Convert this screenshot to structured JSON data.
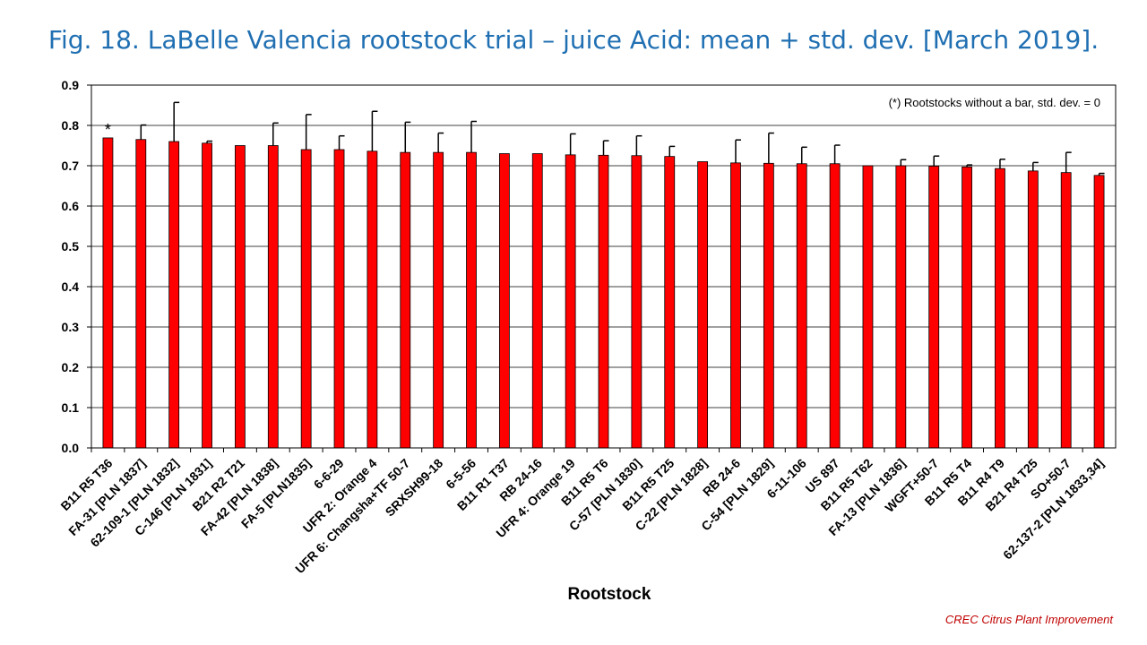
{
  "title": "Fig. 18. LaBelle Valencia rootstock trial – juice Acid: mean + std. dev. [March 2019].",
  "footer_credit": "CREC Citrus Plant Improvement",
  "colors": {
    "title": "#1F6FB2",
    "bar": "#FF0000",
    "credit": "#C00000"
  },
  "chart_data": {
    "type": "bar",
    "xlabel": "Rootstock",
    "ylabel": "",
    "ylim": [
      0,
      0.9
    ],
    "yticks": [
      "0.0",
      "0.1",
      "0.2",
      "0.3",
      "0.4",
      "0.5",
      "0.6",
      "0.7",
      "0.8",
      "0.9"
    ],
    "grid": true,
    "note": "(*) Rootstocks without  a bar, std. dev. = 0",
    "marker": "*",
    "categories": [
      "B11 R5 T36",
      "FA-31 [PLN 1837]",
      "62-109-1 [PLN 1832]",
      "C-146 [PLN 1831]",
      "B21 R2 T21",
      "FA-42 [PLN 1838]",
      "FA-5 [PLN1835]",
      "6-6-29",
      "UFR 2: Orange 4",
      "UFR 6: Changsha+TF 50-7",
      "SRXSH99-18",
      "6-5-56",
      "B11 R1 T37",
      "RB 24-16",
      "UFR 4: Orange 19",
      "B11 R5 T6",
      "C-57 [PLN 1830]",
      "B11 R5 T25",
      "C-22 [PLN 1828]",
      "RB 24-6",
      "C-54 [PLN 1829]",
      "6-11-106",
      "US 897",
      "B11 R5 T62",
      "FA-13 [PLN 1836]",
      "WGFT+50-7",
      "B11 R5 T4",
      "B11 R4 T9",
      "B21 R4 T25",
      "SO+50-7",
      "62-137-2 [PLN 1833,34]"
    ],
    "values": [
      0.769,
      0.765,
      0.76,
      0.756,
      0.75,
      0.75,
      0.74,
      0.74,
      0.736,
      0.733,
      0.733,
      0.733,
      0.73,
      0.73,
      0.727,
      0.726,
      0.725,
      0.723,
      0.71,
      0.707,
      0.706,
      0.705,
      0.705,
      0.7,
      0.7,
      0.699,
      0.697,
      0.693,
      0.687,
      0.683,
      0.676
    ],
    "errors": [
      0.0,
      0.036,
      0.097,
      0.005,
      0.0,
      0.056,
      0.087,
      0.034,
      0.099,
      0.075,
      0.048,
      0.077,
      0.0,
      0.0,
      0.052,
      0.036,
      0.049,
      0.025,
      0.0,
      0.057,
      0.075,
      0.041,
      0.046,
      0.0,
      0.015,
      0.025,
      0.005,
      0.023,
      0.021,
      0.05,
      0.005
    ]
  }
}
